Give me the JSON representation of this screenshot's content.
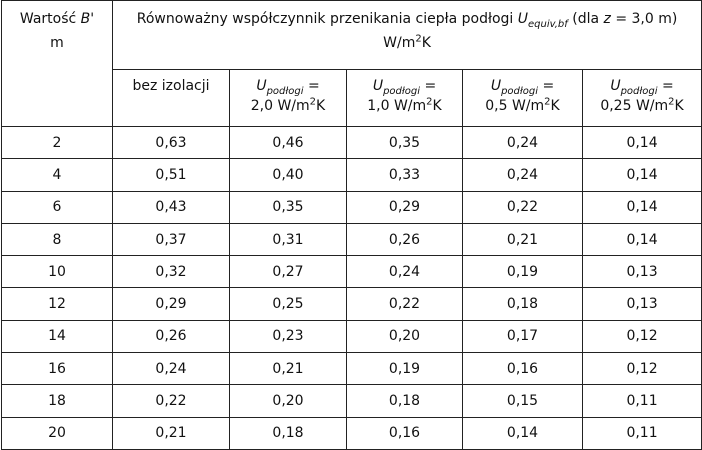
{
  "header": {
    "corner": {
      "label": [
        "Wartość",
        "B'"
      ],
      "unit": "m"
    },
    "group": {
      "text": [
        "Równoważny współczynnik przenikania ciepła podłogi",
        "U",
        "equiv,bf",
        "(dla",
        "z",
        "= 3,0 m)"
      ],
      "unit": [
        "W/m",
        "2",
        "K"
      ]
    },
    "first": "bez izolacji",
    "columns": [
      {
        "symbol": "U",
        "sub": "podłogi",
        "eq": "=",
        "value": "2,0 W/m",
        "sup": "2",
        "unit": "K"
      },
      {
        "symbol": "U",
        "sub": "podłogi",
        "eq": "=",
        "value": "1,0 W/m",
        "sup": "2",
        "unit": "K"
      },
      {
        "symbol": "U",
        "sub": "podłogi",
        "eq": "=",
        "value": "0,5 W/m",
        "sup": "2",
        "unit": "K"
      },
      {
        "symbol": "U",
        "sub": "podłogi",
        "eq": "=",
        "value": "0,25 W/m",
        "sup": "2",
        "unit": "K"
      }
    ]
  },
  "table": {
    "rows": [
      [
        "2",
        "0,63",
        "0,46",
        "0,35",
        "0,24",
        "0,14"
      ],
      [
        "4",
        "0,51",
        "0,40",
        "0,33",
        "0,24",
        "0,14"
      ],
      [
        "6",
        "0,43",
        "0,35",
        "0,29",
        "0,22",
        "0,14"
      ],
      [
        "8",
        "0,37",
        "0,31",
        "0,26",
        "0,21",
        "0,14"
      ],
      [
        "10",
        "0,32",
        "0,27",
        "0,24",
        "0,19",
        "0,13"
      ],
      [
        "12",
        "0,29",
        "0,25",
        "0,22",
        "0,18",
        "0,13"
      ],
      [
        "14",
        "0,26",
        "0,23",
        "0,20",
        "0,17",
        "0,12"
      ],
      [
        "16",
        "0,24",
        "0,21",
        "0,19",
        "0,16",
        "0,12"
      ],
      [
        "18",
        "0,22",
        "0,20",
        "0,18",
        "0,15",
        "0,11"
      ],
      [
        "20",
        "0,21",
        "0,18",
        "0,16",
        "0,14",
        "0,11"
      ]
    ]
  }
}
